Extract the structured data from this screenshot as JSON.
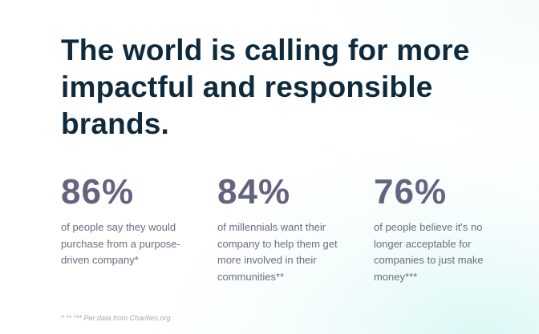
{
  "headline": {
    "before": "The world is calling for more impactful and ",
    "highlight": "responsible",
    "after": " brands."
  },
  "stats": [
    {
      "value": "86%",
      "description": "of people say they would purchase from a purpose-driven company*"
    },
    {
      "value": "84%",
      "description": "of millennials want their company to help them get more involved in their communities**"
    },
    {
      "value": "76%",
      "description": "of people believe it's no longer acceptable for companies to just make money***"
    }
  ],
  "footnote": "* ** *** Per data from Charities.org.",
  "colors": {
    "headline": "#0f2a3d",
    "highlight": "#b7ece4",
    "stat_value": "#646480",
    "stat_text": "#6b6b80",
    "footnote": "#a7a9b8"
  }
}
